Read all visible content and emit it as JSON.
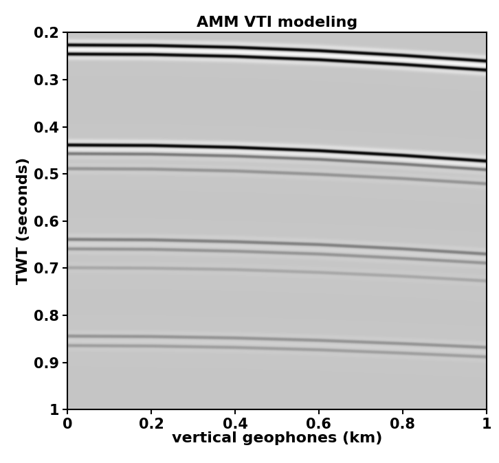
{
  "chart_data": {
    "type": "image",
    "title": "AMM VTI modeling",
    "x_label": "vertical geophones (km)",
    "y_label": "TWT (seconds)",
    "x": [
      0,
      0.2,
      0.4,
      0.6,
      0.8,
      1
    ],
    "events": [
      {
        "times": [
          0.228,
          0.229,
          0.233,
          0.24,
          0.25,
          0.262
        ],
        "amplitude": 1.0
      },
      {
        "times": [
          0.247,
          0.248,
          0.252,
          0.259,
          0.269,
          0.281
        ],
        "amplitude": 1.0
      },
      {
        "times": [
          0.44,
          0.441,
          0.445,
          0.452,
          0.462,
          0.474
        ],
        "amplitude": 1.0
      },
      {
        "times": [
          0.458,
          0.459,
          0.463,
          0.47,
          0.48,
          0.492
        ],
        "amplitude": 0.4
      },
      {
        "times": [
          0.49,
          0.491,
          0.495,
          0.502,
          0.511,
          0.522
        ],
        "amplitude": 0.25
      },
      {
        "times": [
          0.64,
          0.641,
          0.645,
          0.651,
          0.66,
          0.671
        ],
        "amplitude": 0.35
      },
      {
        "times": [
          0.66,
          0.661,
          0.665,
          0.671,
          0.68,
          0.69
        ],
        "amplitude": 0.25
      },
      {
        "times": [
          0.7,
          0.701,
          0.704,
          0.71,
          0.718,
          0.728
        ],
        "amplitude": 0.15
      },
      {
        "times": [
          0.845,
          0.846,
          0.849,
          0.854,
          0.861,
          0.869
        ],
        "amplitude": 0.25
      },
      {
        "times": [
          0.865,
          0.866,
          0.869,
          0.874,
          0.881,
          0.889
        ],
        "amplitude": 0.2
      }
    ],
    "xlim": [
      0,
      1
    ],
    "ylim": [
      1,
      0.2
    ],
    "xticks": [
      0,
      0.2,
      0.4,
      0.6,
      0.8,
      1
    ],
    "yticks": [
      0.2,
      0.3,
      0.4,
      0.5,
      0.6,
      0.7,
      0.8,
      0.9,
      1
    ],
    "grid": false
  }
}
